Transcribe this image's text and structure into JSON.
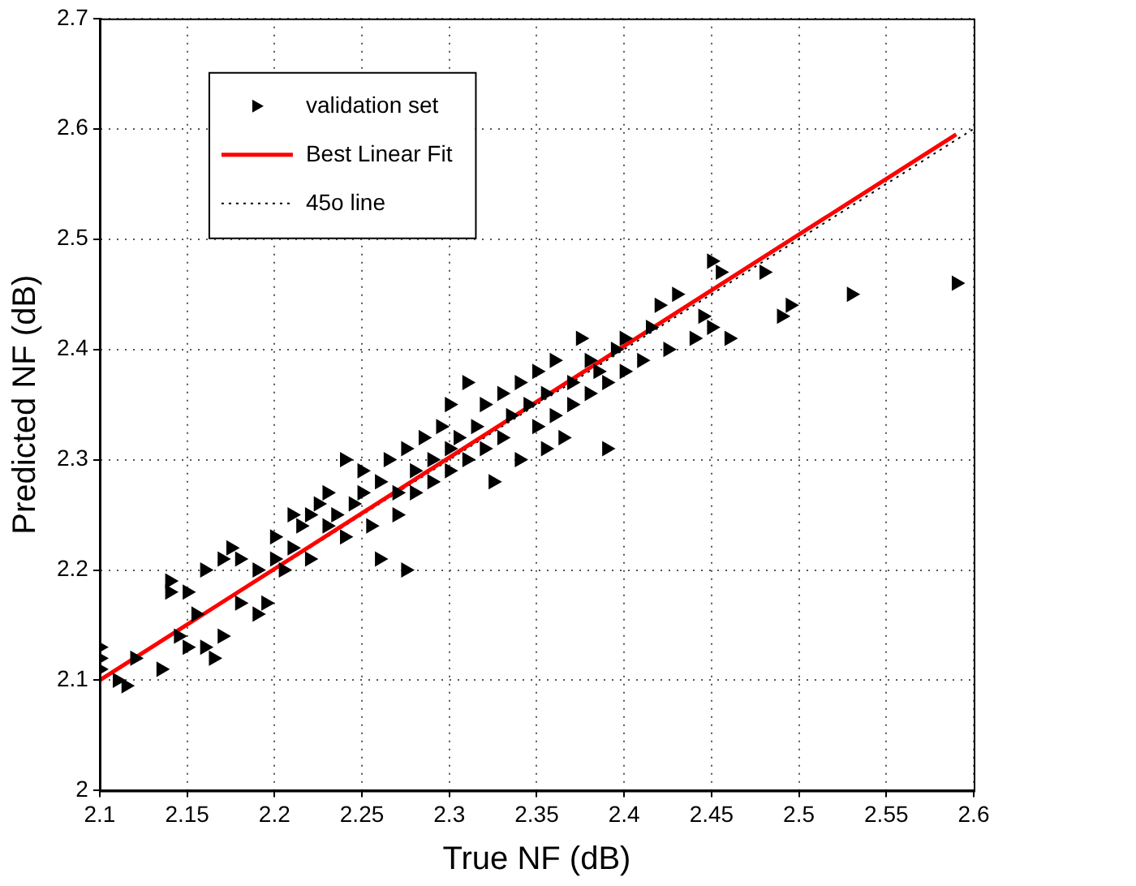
{
  "chart_data": {
    "type": "scatter",
    "xlabel": "True NF (dB)",
    "ylabel": "Predicted NF (dB)",
    "xlim": [
      2.1,
      2.6
    ],
    "xticks": [
      2.1,
      2.15,
      2.2,
      2.25,
      2.3,
      2.35,
      2.4,
      2.45,
      2.5,
      2.55,
      2.6
    ],
    "ylim": [
      2,
      2.7
    ],
    "yticks": [
      2,
      2.1,
      2.2,
      2.3,
      2.4,
      2.5,
      2.6,
      2.7
    ],
    "grid": true,
    "legend": "top left",
    "series": [
      {
        "name": "validation set",
        "color": "#000000",
        "marker": "triangle",
        "x": [
          2.1,
          2.1,
          2.1,
          2.11,
          2.115,
          2.12,
          2.135,
          2.14,
          2.14,
          2.145,
          2.15,
          2.15,
          2.155,
          2.16,
          2.16,
          2.165,
          2.17,
          2.17,
          2.175,
          2.18,
          2.18,
          2.19,
          2.19,
          2.195,
          2.2,
          2.2,
          2.205,
          2.21,
          2.21,
          2.215,
          2.22,
          2.22,
          2.225,
          2.23,
          2.23,
          2.235,
          2.24,
          2.24,
          2.245,
          2.25,
          2.25,
          2.255,
          2.26,
          2.26,
          2.265,
          2.27,
          2.27,
          2.275,
          2.275,
          2.28,
          2.28,
          2.285,
          2.29,
          2.29,
          2.295,
          2.3,
          2.3,
          2.3,
          2.305,
          2.31,
          2.31,
          2.315,
          2.32,
          2.32,
          2.325,
          2.33,
          2.33,
          2.335,
          2.34,
          2.34,
          2.345,
          2.35,
          2.35,
          2.355,
          2.355,
          2.36,
          2.36,
          2.365,
          2.37,
          2.37,
          2.375,
          2.38,
          2.38,
          2.385,
          2.39,
          2.39,
          2.395,
          2.4,
          2.4,
          2.41,
          2.415,
          2.42,
          2.425,
          2.43,
          2.44,
          2.445,
          2.45,
          2.45,
          2.455,
          2.46,
          2.48,
          2.49,
          2.495,
          2.53,
          2.59
        ],
        "values": [
          2.13,
          2.12,
          2.11,
          2.1,
          2.095,
          2.12,
          2.11,
          2.18,
          2.19,
          2.14,
          2.13,
          2.18,
          2.16,
          2.2,
          2.13,
          2.12,
          2.21,
          2.14,
          2.22,
          2.21,
          2.17,
          2.16,
          2.2,
          2.17,
          2.23,
          2.21,
          2.2,
          2.25,
          2.22,
          2.24,
          2.25,
          2.21,
          2.26,
          2.24,
          2.27,
          2.25,
          2.3,
          2.23,
          2.26,
          2.29,
          2.27,
          2.24,
          2.21,
          2.28,
          2.3,
          2.27,
          2.25,
          2.31,
          2.2,
          2.29,
          2.27,
          2.32,
          2.3,
          2.28,
          2.33,
          2.31,
          2.29,
          2.35,
          2.32,
          2.3,
          2.37,
          2.33,
          2.31,
          2.35,
          2.28,
          2.36,
          2.32,
          2.34,
          2.37,
          2.3,
          2.35,
          2.33,
          2.38,
          2.31,
          2.36,
          2.34,
          2.39,
          2.32,
          2.37,
          2.35,
          2.41,
          2.39,
          2.36,
          2.38,
          2.31,
          2.37,
          2.4,
          2.38,
          2.41,
          2.39,
          2.42,
          2.44,
          2.4,
          2.45,
          2.41,
          2.43,
          2.48,
          2.42,
          2.47,
          2.41,
          2.47,
          2.43,
          2.44,
          2.45,
          2.46
        ]
      },
      {
        "name": "Best Linear Fit",
        "type": "line",
        "color": "#ff0000",
        "line_style": "solid",
        "marker": "none",
        "x": [
          2.1,
          2.59
        ],
        "values": [
          2.1,
          2.595
        ]
      },
      {
        "name": "45o line",
        "type": "line",
        "color": "#000000",
        "line_style": "dotted",
        "marker": "none",
        "x": [
          2.1,
          2.6
        ],
        "values": [
          2.1,
          2.6
        ]
      }
    ]
  }
}
